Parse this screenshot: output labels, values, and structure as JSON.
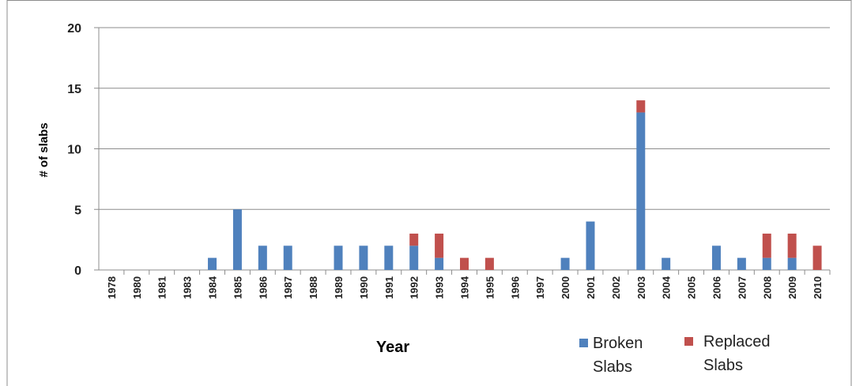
{
  "chart_data": {
    "type": "stacked-bar",
    "categories": [
      "1978",
      "1980",
      "1981",
      "1983",
      "1984",
      "1985",
      "1986",
      "1987",
      "1988",
      "1989",
      "1990",
      "1991",
      "1992",
      "1993",
      "1994",
      "1995",
      "1996",
      "1997",
      "2000",
      "2001",
      "2002",
      "2003",
      "2004",
      "2005",
      "2006",
      "2007",
      "2008",
      "2009",
      "2010"
    ],
    "series": [
      {
        "name": "Broken Slabs",
        "color": "#4f81bd",
        "values": [
          0,
          0,
          0,
          0,
          1,
          5,
          2,
          2,
          0,
          2,
          2,
          2,
          2,
          1,
          0,
          0,
          0,
          0,
          1,
          4,
          0,
          13,
          1,
          0,
          2,
          1,
          1,
          1,
          0
        ]
      },
      {
        "name": "Replaced Slabs",
        "color": "#c0504d",
        "values": [
          0,
          0,
          0,
          0,
          0,
          0,
          0,
          0,
          0,
          0,
          0,
          0,
          1,
          2,
          1,
          1,
          0,
          0,
          0,
          0,
          0,
          1,
          0,
          0,
          0,
          0,
          2,
          2,
          2
        ]
      }
    ],
    "x_label": "Year",
    "y_label": "# of slabs",
    "ylim": [
      0,
      20
    ],
    "yticks": [
      0,
      5,
      10,
      15,
      20
    ],
    "grid": true
  }
}
